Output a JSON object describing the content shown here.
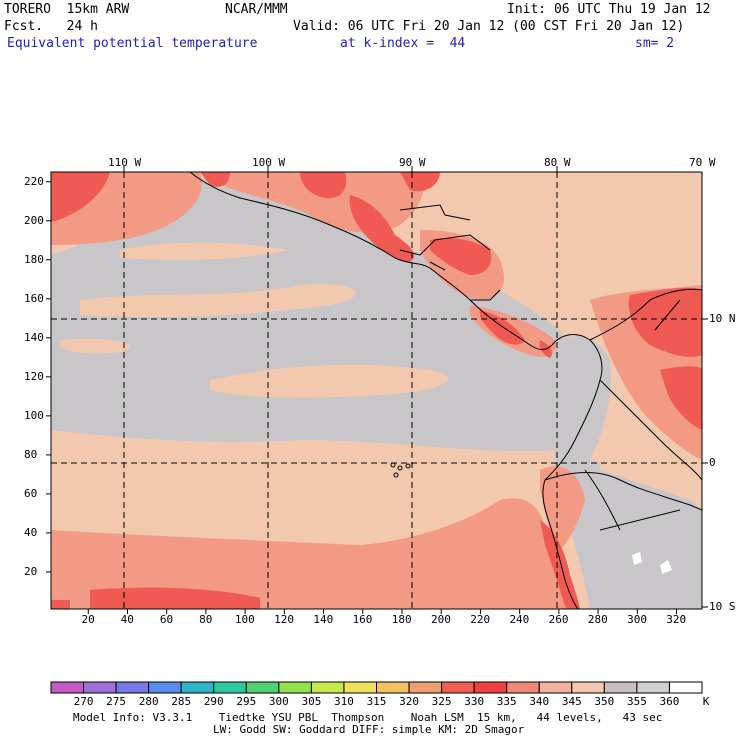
{
  "header": {
    "model": "TORERO  15km ARW",
    "forecast": "Fcst.   24 h",
    "center": "NCAR/MMM",
    "init": "Init: 06 UTC Thu 19 Jan 12",
    "valid": "Valid: 06 UTC Fri 20 Jan 12 (00 CST Fri 20 Jan 12)",
    "field": "Equivalent potential temperature",
    "level": "at k-index =  44",
    "smoothing": "sm= 2"
  },
  "map": {
    "top_longitude_labels": [
      "110 W",
      "100 W",
      "90 W",
      "80 W",
      "70 W"
    ],
    "right_latitude_labels": [
      "10 N",
      "0",
      "10 S"
    ],
    "left_axis_ticks": [
      "220",
      "200",
      "180",
      "160",
      "140",
      "120",
      "100",
      "80",
      "60",
      "40",
      "20"
    ],
    "bottom_axis_ticks": [
      "20",
      "40",
      "60",
      "80",
      "100",
      "120",
      "140",
      "160",
      "180",
      "200",
      "220",
      "240",
      "260",
      "280",
      "300",
      "320"
    ],
    "grid_range": {
      "x": [
        1,
        333
      ],
      "y": [
        1,
        225
      ]
    }
  },
  "colorbar": {
    "unit": "K",
    "labels": [
      "270",
      "275",
      "280",
      "285",
      "290",
      "295",
      "300",
      "305",
      "310",
      "315",
      "320",
      "325",
      "330",
      "335",
      "340",
      "345",
      "350",
      "355",
      "360"
    ],
    "colors": [
      "#c45ac8",
      "#a070d8",
      "#7878e8",
      "#5a8cf0",
      "#30b4c8",
      "#30c8a0",
      "#50d070",
      "#90e050",
      "#c8e850",
      "#f0e060",
      "#f5c060",
      "#f0a070",
      "#f06050",
      "#f04040",
      "#f08878",
      "#f5b0a0",
      "#f5c8b0",
      "#c8c0c0",
      "#d0d0d0",
      "#ffffff"
    ]
  },
  "footer": {
    "line1": "Model Info: V3.3.1    Tiedtke YSU PBL  Thompson    Noah LSM  15 km,   44 levels,   43 sec",
    "line2": "LW: Godd SW: Goddard DIFF: simple KM: 2D Smagor"
  },
  "palette": {
    "grey": "#c8c6c8",
    "tan": "#f2c8ae",
    "salmon": "#f39a84",
    "red": "#ef5a52",
    "white": "#ffffff"
  }
}
